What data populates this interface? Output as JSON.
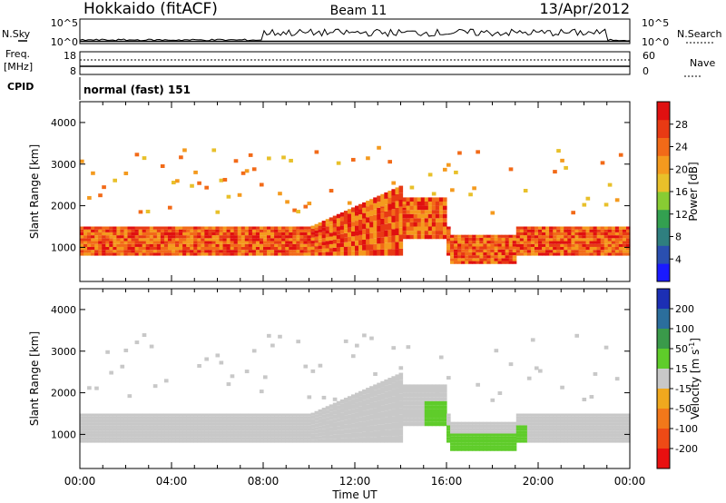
{
  "header": {
    "station": "Hokkaido (fitACF)",
    "beam": "Beam 11",
    "date": "13/Apr/2012"
  },
  "noise_panel": {
    "left_label": "N.Sky",
    "right_label": "N.Search",
    "y_ticks": [
      "10^5",
      "10^0"
    ]
  },
  "freq_panel": {
    "left_label_1": "Freq.",
    "left_label_2": "[MHz]",
    "right_label": "Nave",
    "left_ticks": [
      "18",
      "8"
    ],
    "right_ticks": [
      "60",
      "0"
    ]
  },
  "cpid": {
    "label": "CPID",
    "value": "normal (fast) 151"
  },
  "chart_data": [
    {
      "type": "heatmap",
      "parameter": "Power",
      "ylabel": "Slant Range [km]",
      "xlabel": "Time UT",
      "x_ticks": [
        "00:00",
        "04:00",
        "08:00",
        "12:00",
        "16:00",
        "20:00",
        "00:00"
      ],
      "y_ticks": [
        1000,
        2000,
        3000,
        4000
      ],
      "ylim": [
        180,
        4500
      ],
      "xlim_hours": [
        0,
        24
      ],
      "colorbar": {
        "label": "Power [dB]",
        "ticks": [
          4,
          8,
          12,
          16,
          20,
          24,
          28
        ],
        "range": [
          0,
          32
        ],
        "colors": [
          "#1a1aff",
          "#2a4fb0",
          "#2f7f7f",
          "#33a050",
          "#88cc33",
          "#e8c02a",
          "#f49a1e",
          "#f26a18",
          "#e83a14",
          "#e01010"
        ]
      }
    },
    {
      "type": "heatmap",
      "parameter": "Velocity",
      "ylabel": "Slant Range [km]",
      "xlabel": "Time UT",
      "x_ticks": [
        "00:00",
        "04:00",
        "08:00",
        "12:00",
        "16:00",
        "20:00",
        "00:00"
      ],
      "y_ticks": [
        1000,
        2000,
        3000,
        4000
      ],
      "ylim": [
        180,
        4500
      ],
      "xlim_hours": [
        0,
        24
      ],
      "colorbar": {
        "label": "Velocity [m s",
        "label_sup": "-1",
        "label_end": "]",
        "ticks": [
          "200",
          "100",
          "50",
          "15",
          "-15",
          "-50",
          "-100",
          "-200"
        ],
        "colors": [
          "#1c2fb4",
          "#2b6e9c",
          "#3a9a4a",
          "#5fcc2a",
          "#c8c8c8",
          "#f0a81e",
          "#f2781a",
          "#ee4a16",
          "#e81010"
        ]
      }
    }
  ]
}
